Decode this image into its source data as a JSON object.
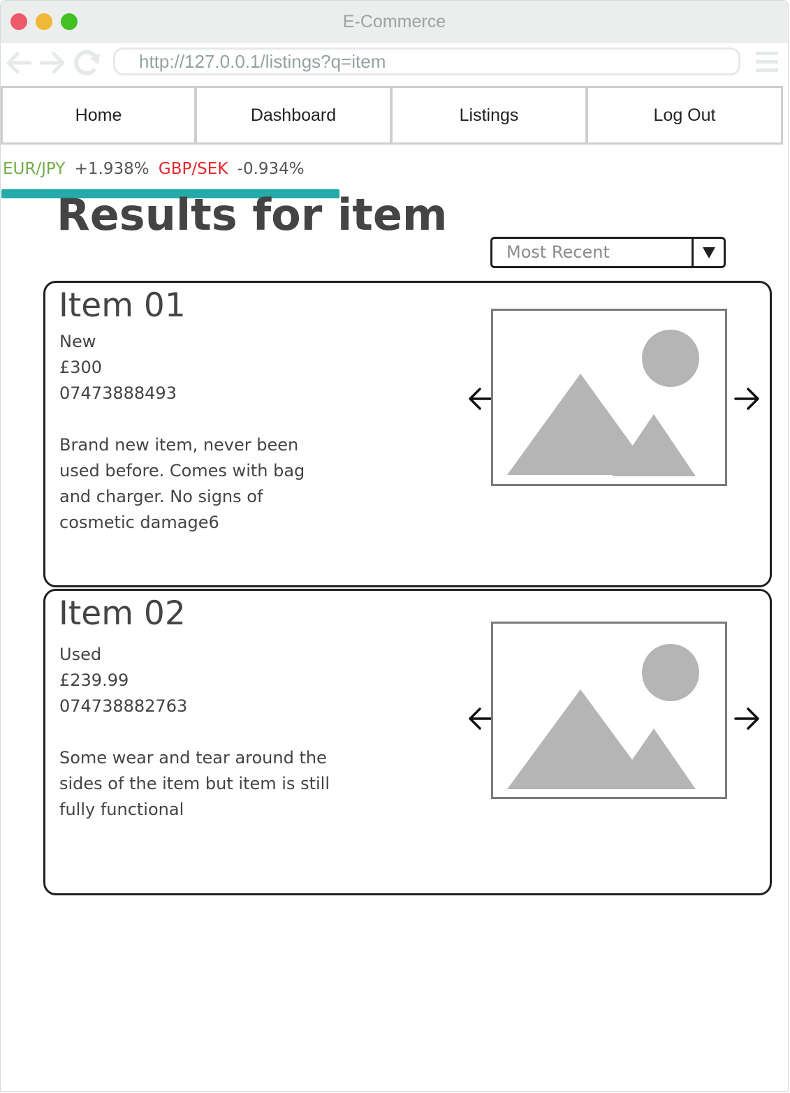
{
  "window": {
    "title": "E-Commerce",
    "url": "http://127.0.0.1/listings?q=item"
  },
  "navbar": {
    "items": [
      {
        "label": "Home"
      },
      {
        "label": "Dashboard"
      },
      {
        "label": "Listings"
      },
      {
        "label": "Log Out"
      }
    ]
  },
  "ticker": {
    "items": [
      {
        "pair": "EUR/JPY",
        "change": "+1.938%",
        "direction": "up",
        "color": "#71ad47"
      },
      {
        "pair": "GBP/SEK",
        "change": "-0.934%",
        "direction": "down",
        "color": "#e8262c"
      }
    ],
    "bar_color": "#23aaa9"
  },
  "page": {
    "title": "Results for item"
  },
  "sort": {
    "selected": "Most Recent"
  },
  "listings": [
    {
      "title": "Item 01",
      "condition": "New",
      "price": "£300",
      "phone": "07473888493",
      "description": "Brand new item, never been used before. Comes with bag and charger. No signs of cosmetic damage6",
      "image_icon": "image-placeholder-icon"
    },
    {
      "title": "Item 02",
      "condition": "Used",
      "price": "£239.99",
      "phone": "074738882763",
      "description": "Some wear and tear around the sides of the item but item is still fully functional",
      "image_icon": "image-placeholder-icon"
    }
  ]
}
